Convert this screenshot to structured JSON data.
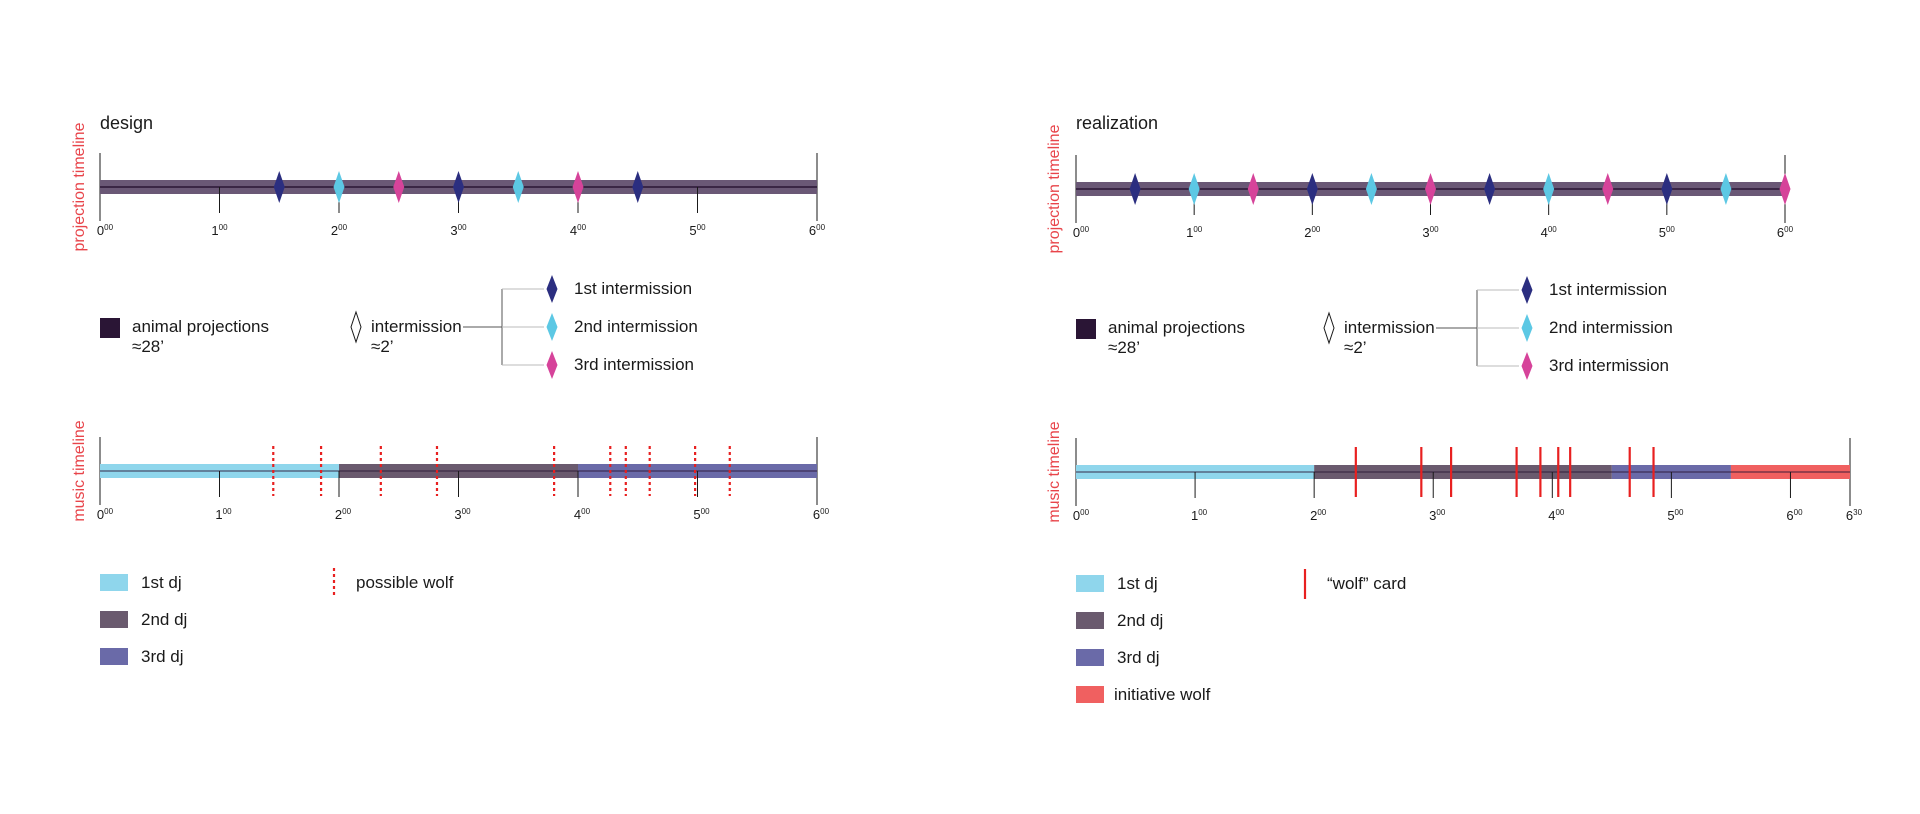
{
  "colors": {
    "projection": "#6a5876",
    "projection_legend": "#2a1535",
    "timeline_line": "#2a1535",
    "dj1": "#8fd6ec",
    "dj2": "#6a5a6e",
    "dj3": "#6a6aa8",
    "initiative": "#f06060",
    "wolf": "#e82020",
    "intermission1": "#2b2e80",
    "intermission2": "#5cc8e4",
    "intermission3": "#d6439a",
    "vertical_label": "#e8444a"
  },
  "panels": [
    {
      "title": "design",
      "projection_label": "projection timeline",
      "music_label": "music timeline",
      "projection_ticks": [
        {
          "h": "0",
          "m": "00"
        },
        {
          "h": "1",
          "m": "00"
        },
        {
          "h": "2",
          "m": "00"
        },
        {
          "h": "3",
          "m": "00"
        },
        {
          "h": "4",
          "m": "00"
        },
        {
          "h": "5",
          "m": "00"
        },
        {
          "h": "6",
          "m": "00"
        }
      ],
      "projection_range": [
        0,
        6
      ],
      "diamonds": [
        {
          "t": 1.5,
          "kind": 1
        },
        {
          "t": 2.0,
          "kind": 2
        },
        {
          "t": 2.5,
          "kind": 3
        },
        {
          "t": 3.0,
          "kind": 1
        },
        {
          "t": 3.5,
          "kind": 2
        },
        {
          "t": 4.0,
          "kind": 3
        },
        {
          "t": 4.5,
          "kind": 1
        }
      ],
      "music_range": [
        0,
        6
      ],
      "music_ticks": [
        {
          "h": "0",
          "m": "00",
          "t": 0
        },
        {
          "h": "1",
          "m": "00",
          "t": 1
        },
        {
          "h": "2",
          "m": "00",
          "t": 2
        },
        {
          "h": "3",
          "m": "00",
          "t": 3
        },
        {
          "h": "4",
          "m": "00",
          "t": 4
        },
        {
          "h": "5",
          "m": "00",
          "t": 5
        },
        {
          "h": "6",
          "m": "00",
          "t": 6
        }
      ],
      "music_segments": [
        {
          "from": 0,
          "to": 2,
          "dj": "dj1"
        },
        {
          "from": 2,
          "to": 4,
          "dj": "dj2"
        },
        {
          "from": 4,
          "to": 6,
          "dj": "dj3"
        }
      ],
      "wolves": [
        1.45,
        1.85,
        2.35,
        2.82,
        3.8,
        4.27,
        4.4,
        4.6,
        4.98,
        5.27
      ],
      "wolf_style": "dotted",
      "legend": {
        "animal_projections": "animal projections",
        "animal_duration": "≈28’",
        "intermission": "intermission",
        "intermission_duration": "≈2’",
        "intermission_items": [
          "1st intermission",
          "2nd intermission",
          "3rd intermission"
        ],
        "dj_items": [
          "1st dj",
          "2nd dj",
          "3rd dj"
        ],
        "wolf_label": "possible wolf"
      }
    },
    {
      "title": "realization",
      "projection_label": "projection timeline",
      "music_label": "music timeline",
      "projection_ticks": [
        {
          "h": "0",
          "m": "00"
        },
        {
          "h": "1",
          "m": "00"
        },
        {
          "h": "2",
          "m": "00"
        },
        {
          "h": "3",
          "m": "00"
        },
        {
          "h": "4",
          "m": "00"
        },
        {
          "h": "5",
          "m": "00"
        },
        {
          "h": "6",
          "m": "00"
        }
      ],
      "projection_range": [
        0,
        6
      ],
      "diamonds": [
        {
          "t": 0.5,
          "kind": 1
        },
        {
          "t": 1.0,
          "kind": 2
        },
        {
          "t": 1.5,
          "kind": 3
        },
        {
          "t": 2.0,
          "kind": 1
        },
        {
          "t": 2.5,
          "kind": 2
        },
        {
          "t": 3.0,
          "kind": 3
        },
        {
          "t": 3.5,
          "kind": 1
        },
        {
          "t": 4.0,
          "kind": 2
        },
        {
          "t": 4.5,
          "kind": 3
        },
        {
          "t": 5.0,
          "kind": 1
        },
        {
          "t": 5.5,
          "kind": 2
        },
        {
          "t": 6.0,
          "kind": 3
        }
      ],
      "music_range": [
        0,
        6.5
      ],
      "music_ticks": [
        {
          "h": "0",
          "m": "00",
          "t": 0
        },
        {
          "h": "1",
          "m": "00",
          "t": 1
        },
        {
          "h": "2",
          "m": "00",
          "t": 2
        },
        {
          "h": "3",
          "m": "00",
          "t": 3
        },
        {
          "h": "4",
          "m": "00",
          "t": 4
        },
        {
          "h": "5",
          "m": "00",
          "t": 5
        },
        {
          "h": "6",
          "m": "00",
          "t": 6
        },
        {
          "h": "6",
          "m": "30",
          "t": 6.5
        }
      ],
      "music_segments": [
        {
          "from": 0,
          "to": 2,
          "dj": "dj1"
        },
        {
          "from": 2,
          "to": 4.5,
          "dj": "dj2"
        },
        {
          "from": 4.5,
          "to": 5.5,
          "dj": "dj3"
        },
        {
          "from": 5.5,
          "to": 6.5,
          "dj": "initiative"
        }
      ],
      "wolves": [
        2.35,
        2.9,
        3.15,
        3.7,
        3.9,
        4.05,
        4.15,
        4.65,
        4.85
      ],
      "wolf_style": "solid",
      "legend": {
        "animal_projections": "animal projections",
        "animal_duration": "≈28’",
        "intermission": "intermission",
        "intermission_duration": "≈2’",
        "intermission_items": [
          "1st intermission",
          "2nd intermission",
          "3rd intermission"
        ],
        "dj_items": [
          "1st dj",
          "2nd dj",
          "3rd dj",
          "initiative wolf"
        ],
        "wolf_label": "“wolf” card"
      }
    }
  ]
}
